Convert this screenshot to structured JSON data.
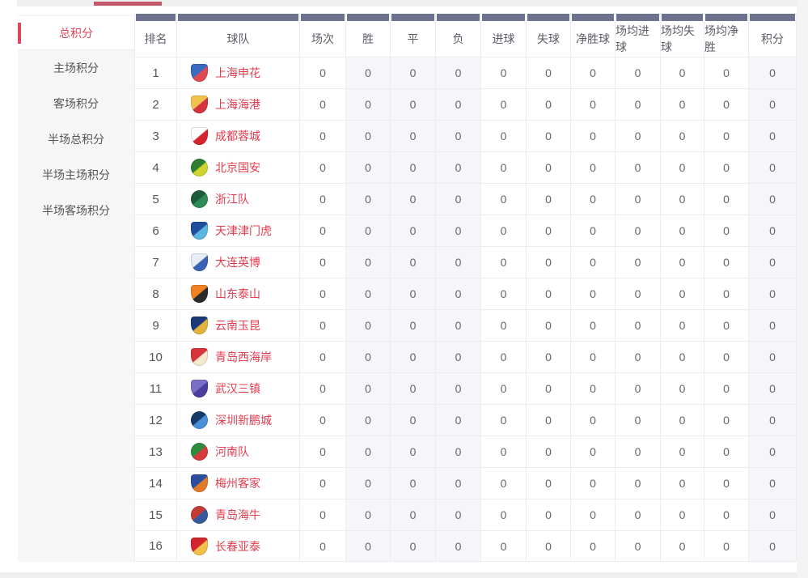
{
  "colors": {
    "accent_red": "#e2455a",
    "tab_underline_red": "#c05a6b",
    "header_bar_purple": "#6e7190",
    "shaded_column_bg": "#f5f5fa",
    "team_link_red": "#e23c4e"
  },
  "sidebar": {
    "items": [
      {
        "key": "total-points",
        "label": "总积分",
        "active": true
      },
      {
        "key": "home-points",
        "label": "主场积分",
        "active": false
      },
      {
        "key": "away-points",
        "label": "客场积分",
        "active": false
      },
      {
        "key": "half-total-points",
        "label": "半场总积分",
        "active": false
      },
      {
        "key": "half-home-points",
        "label": "半场主场积分",
        "active": false
      },
      {
        "key": "half-away-points",
        "label": "半场客场积分",
        "active": false
      }
    ]
  },
  "table": {
    "columns": [
      {
        "key": "rank",
        "label": "排名"
      },
      {
        "key": "team",
        "label": "球队"
      },
      {
        "key": "played",
        "label": "场次"
      },
      {
        "key": "win",
        "label": "胜",
        "shaded": true
      },
      {
        "key": "draw",
        "label": "平",
        "shaded": true
      },
      {
        "key": "loss",
        "label": "负",
        "shaded": true
      },
      {
        "key": "goals-for",
        "label": "进球"
      },
      {
        "key": "goals-against",
        "label": "失球"
      },
      {
        "key": "goal-diff",
        "label": "净胜球"
      },
      {
        "key": "avg-goals-for",
        "label": "场均进球"
      },
      {
        "key": "avg-goals-against",
        "label": "场均失球"
      },
      {
        "key": "avg-goal-diff",
        "label": "场均净胜"
      },
      {
        "key": "points",
        "label": "积分",
        "shaded": true
      }
    ],
    "rows": [
      {
        "rank": 1,
        "team": "上海申花",
        "logo": {
          "shape": "shield",
          "colors": [
            "#3a6bc0",
            "#e04a52"
          ]
        },
        "stats": [
          0,
          0,
          0,
          0,
          0,
          0,
          0,
          0,
          0,
          0,
          0
        ]
      },
      {
        "rank": 2,
        "team": "上海海港",
        "logo": {
          "shape": "shield",
          "colors": [
            "#f0c34e",
            "#d5333f"
          ]
        },
        "stats": [
          0,
          0,
          0,
          0,
          0,
          0,
          0,
          0,
          0,
          0,
          0
        ]
      },
      {
        "rank": 3,
        "team": "成都蓉城",
        "logo": {
          "shape": "shield",
          "colors": [
            "#ffffff",
            "#d6242f"
          ]
        },
        "stats": [
          0,
          0,
          0,
          0,
          0,
          0,
          0,
          0,
          0,
          0,
          0
        ]
      },
      {
        "rank": 4,
        "team": "北京国安",
        "logo": {
          "shape": "circle",
          "colors": [
            "#2e7d32",
            "#cdd52e"
          ]
        },
        "stats": [
          0,
          0,
          0,
          0,
          0,
          0,
          0,
          0,
          0,
          0,
          0
        ]
      },
      {
        "rank": 5,
        "team": "浙江队",
        "logo": {
          "shape": "circle",
          "colors": [
            "#1d5c38",
            "#2e8b57"
          ]
        },
        "stats": [
          0,
          0,
          0,
          0,
          0,
          0,
          0,
          0,
          0,
          0,
          0
        ]
      },
      {
        "rank": 6,
        "team": "天津津门虎",
        "logo": {
          "shape": "shield",
          "colors": [
            "#1f4e9c",
            "#5bb7e0"
          ]
        },
        "stats": [
          0,
          0,
          0,
          0,
          0,
          0,
          0,
          0,
          0,
          0,
          0
        ]
      },
      {
        "rank": 7,
        "team": "大连英博",
        "logo": {
          "shape": "shield",
          "colors": [
            "#e8eef8",
            "#3a63b5"
          ]
        },
        "stats": [
          0,
          0,
          0,
          0,
          0,
          0,
          0,
          0,
          0,
          0,
          0
        ]
      },
      {
        "rank": 8,
        "team": "山东泰山",
        "logo": {
          "shape": "shield",
          "colors": [
            "#f08223",
            "#2b2b2b"
          ]
        },
        "stats": [
          0,
          0,
          0,
          0,
          0,
          0,
          0,
          0,
          0,
          0,
          0
        ]
      },
      {
        "rank": 9,
        "team": "云南玉昆",
        "logo": {
          "shape": "shield",
          "colors": [
            "#1b3a7a",
            "#e3b33c"
          ]
        },
        "stats": [
          0,
          0,
          0,
          0,
          0,
          0,
          0,
          0,
          0,
          0,
          0
        ]
      },
      {
        "rank": 10,
        "team": "青岛西海岸",
        "logo": {
          "shape": "shield",
          "colors": [
            "#d6333c",
            "#f5e9d0"
          ]
        },
        "stats": [
          0,
          0,
          0,
          0,
          0,
          0,
          0,
          0,
          0,
          0,
          0
        ]
      },
      {
        "rank": 11,
        "team": "武汉三镇",
        "logo": {
          "shape": "shield",
          "colors": [
            "#7a6fc4",
            "#4b3f9e"
          ]
        },
        "stats": [
          0,
          0,
          0,
          0,
          0,
          0,
          0,
          0,
          0,
          0,
          0
        ]
      },
      {
        "rank": 12,
        "team": "深圳新鹏城",
        "logo": {
          "shape": "circle",
          "colors": [
            "#173a6a",
            "#4a90d9"
          ]
        },
        "stats": [
          0,
          0,
          0,
          0,
          0,
          0,
          0,
          0,
          0,
          0,
          0
        ]
      },
      {
        "rank": 13,
        "team": "河南队",
        "logo": {
          "shape": "circle",
          "colors": [
            "#2e8b3d",
            "#d63a3a"
          ]
        },
        "stats": [
          0,
          0,
          0,
          0,
          0,
          0,
          0,
          0,
          0,
          0,
          0
        ]
      },
      {
        "rank": 14,
        "team": "梅州客家",
        "logo": {
          "shape": "shield",
          "colors": [
            "#2b4f9e",
            "#e07b2a"
          ]
        },
        "stats": [
          0,
          0,
          0,
          0,
          0,
          0,
          0,
          0,
          0,
          0,
          0
        ]
      },
      {
        "rank": 15,
        "team": "青岛海牛",
        "logo": {
          "shape": "circle",
          "colors": [
            "#c43a35",
            "#355a9e"
          ]
        },
        "stats": [
          0,
          0,
          0,
          0,
          0,
          0,
          0,
          0,
          0,
          0,
          0
        ]
      },
      {
        "rank": 16,
        "team": "长春亚泰",
        "logo": {
          "shape": "shield",
          "colors": [
            "#d2262f",
            "#f0c04a"
          ]
        },
        "stats": [
          0,
          0,
          0,
          0,
          0,
          0,
          0,
          0,
          0,
          0,
          0
        ]
      }
    ]
  }
}
